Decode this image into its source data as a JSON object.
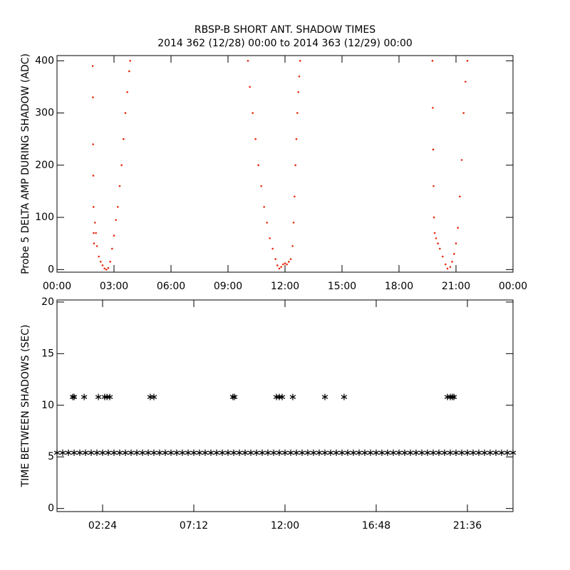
{
  "chart_data": [
    {
      "type": "scatter",
      "marker": "dot",
      "title": "RBSP-B SHORT ANT. SHADOW TIMES",
      "subtitle": "2014 362 (12/28) 00:00 to 2014 363 (12/29) 00:00",
      "y_label": "Probe 5 DELTA AMP DURING SHADOW (ADC)",
      "xlim": [
        0,
        24
      ],
      "ylim": [
        -5,
        410
      ],
      "xticks": [
        {
          "value": 0,
          "label": "00:00"
        },
        {
          "value": 3,
          "label": "03:00"
        },
        {
          "value": 6,
          "label": "06:00"
        },
        {
          "value": 9,
          "label": "09:00"
        },
        {
          "value": 12,
          "label": "12:00"
        },
        {
          "value": 15,
          "label": "15:00"
        },
        {
          "value": 18,
          "label": "18:00"
        },
        {
          "value": 21,
          "label": "21:00"
        },
        {
          "value": 24,
          "label": "00:00"
        }
      ],
      "yticks": [
        0,
        100,
        200,
        300,
        400
      ],
      "series": [
        {
          "color": "#e8290b",
          "x": [
            1.88,
            1.89,
            1.9,
            1.91,
            1.92,
            1.93,
            1.95,
            2.0,
            2.05,
            2.1,
            2.2,
            2.3,
            2.4,
            2.5,
            2.6,
            2.7,
            2.8,
            2.9,
            3.0,
            3.1,
            3.2,
            3.3,
            3.4,
            3.5,
            3.6,
            3.7,
            3.8,
            3.85,
            10.05,
            10.15,
            10.3,
            10.45,
            10.6,
            10.75,
            10.9,
            11.05,
            11.2,
            11.35,
            11.5,
            11.6,
            11.7,
            11.8,
            11.9,
            12.0,
            12.1,
            12.2,
            12.3,
            12.4,
            12.45,
            12.5,
            12.55,
            12.6,
            12.65,
            12.7,
            12.75,
            12.8,
            19.76,
            19.78,
            19.8,
            19.82,
            19.84,
            19.88,
            19.95,
            20.05,
            20.15,
            20.3,
            20.45,
            20.55,
            20.7,
            20.8,
            20.9,
            21.0,
            21.1,
            21.2,
            21.3,
            21.4,
            21.5,
            21.6
          ],
          "values": [
            390,
            330,
            240,
            180,
            120,
            70,
            50,
            90,
            70,
            45,
            25,
            15,
            8,
            2,
            0,
            3,
            15,
            40,
            65,
            95,
            120,
            160,
            200,
            250,
            300,
            340,
            380,
            400,
            400,
            350,
            300,
            250,
            200,
            160,
            120,
            90,
            60,
            40,
            20,
            8,
            2,
            5,
            10,
            12,
            10,
            15,
            20,
            45,
            90,
            140,
            200,
            250,
            300,
            340,
            370,
            400,
            400,
            310,
            230,
            160,
            100,
            70,
            60,
            50,
            40,
            25,
            10,
            2,
            5,
            15,
            30,
            50,
            80,
            140,
            210,
            300,
            360,
            400
          ]
        }
      ]
    },
    {
      "type": "scatter",
      "marker": "asterisk",
      "y_label": "TIME BETWEEN SHADOWS (SEC)",
      "xlim": [
        0,
        24
      ],
      "ylim": [
        -0.3,
        20.2
      ],
      "xticks": [
        {
          "value": 2.4,
          "label": "02:24"
        },
        {
          "value": 7.2,
          "label": "07:12"
        },
        {
          "value": 12,
          "label": "12:00"
        },
        {
          "value": 16.8,
          "label": "16:48"
        },
        {
          "value": 21.6,
          "label": "21:36"
        }
      ],
      "yticks": [
        0,
        5,
        10,
        15,
        20
      ],
      "series": [
        {
          "color": "#000000",
          "x": [
            0,
            0.3,
            0.6,
            0.9,
            1.2,
            1.5,
            1.8,
            2.1,
            2.4,
            2.7,
            3,
            3.3,
            3.6,
            3.9,
            4.2,
            4.5,
            4.8,
            5.1,
            5.4,
            5.7,
            6,
            6.3,
            6.6,
            6.9,
            7.2,
            7.5,
            7.8,
            8.1,
            8.4,
            8.7,
            9,
            9.3,
            9.6,
            9.9,
            10.2,
            10.5,
            10.8,
            11.1,
            11.4,
            11.7,
            12,
            12.3,
            12.6,
            12.9,
            13.2,
            13.5,
            13.8,
            14.1,
            14.4,
            14.7,
            15,
            15.3,
            15.6,
            15.9,
            16.2,
            16.5,
            16.8,
            17.1,
            17.4,
            17.7,
            18,
            18.3,
            18.6,
            18.9,
            19.2,
            19.5,
            19.8,
            20.1,
            20.4,
            20.7,
            21,
            21.3,
            21.6,
            21.9,
            22.2,
            22.5,
            22.8,
            23.1,
            23.4,
            23.7,
            24
          ],
          "values": [
            5.4,
            5.4,
            5.4,
            5.4,
            5.4,
            5.4,
            5.4,
            5.4,
            5.4,
            5.4,
            5.4,
            5.4,
            5.4,
            5.4,
            5.4,
            5.4,
            5.4,
            5.4,
            5.4,
            5.4,
            5.4,
            5.4,
            5.4,
            5.4,
            5.4,
            5.4,
            5.4,
            5.4,
            5.4,
            5.4,
            5.4,
            5.4,
            5.4,
            5.4,
            5.4,
            5.4,
            5.4,
            5.4,
            5.4,
            5.4,
            5.4,
            5.4,
            5.4,
            5.4,
            5.4,
            5.4,
            5.4,
            5.4,
            5.4,
            5.4,
            5.4,
            5.4,
            5.4,
            5.4,
            5.4,
            5.4,
            5.4,
            5.4,
            5.4,
            5.4,
            5.4,
            5.4,
            5.4,
            5.4,
            5.4,
            5.4,
            5.4,
            5.4,
            5.4,
            5.4,
            5.4,
            5.4,
            5.4,
            5.4,
            5.4,
            5.4,
            5.4,
            5.4,
            5.4,
            5.4,
            5.4
          ]
        },
        {
          "color": "#000000",
          "x": [
            0.83,
            0.9,
            1.43,
            2.18,
            2.51,
            2.63,
            2.78,
            4.91,
            5.1,
            9.26,
            9.34,
            11.55,
            11.7,
            11.85,
            12.41,
            14.1,
            15.11,
            20.55,
            20.7,
            20.81,
            20.89
          ],
          "values": [
            10.8,
            10.8,
            10.8,
            10.8,
            10.8,
            10.8,
            10.8,
            10.8,
            10.8,
            10.8,
            10.8,
            10.8,
            10.8,
            10.8,
            10.8,
            10.8,
            10.8,
            10.8,
            10.8,
            10.8,
            10.8
          ]
        }
      ]
    }
  ]
}
